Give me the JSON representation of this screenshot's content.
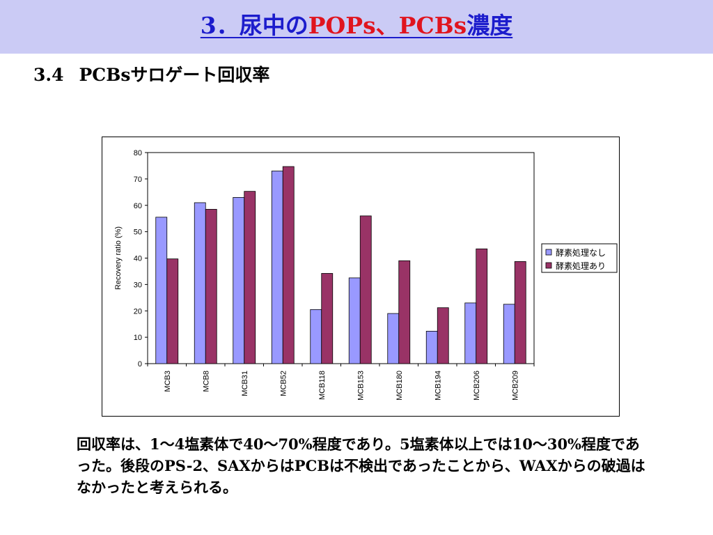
{
  "slide": {
    "title_prefix": "3．尿中の",
    "title_highlight": "POPs、PCBs",
    "title_suffix": "濃度",
    "section_number": "3.4",
    "section_title": "PCBsサロゲート回収率",
    "body": "回収率は、1～4塩素体で40～70%程度であり。5塩素体以上では10～30%程度であった。後段のPS-2、SAXからはPCBは不検出であったことから、WAXからの破過はなかったと考えられる。"
  },
  "colors": {
    "title_band": "#cbcbf5",
    "title_blue": "#1c1ccc",
    "title_red": "#e0141e",
    "series_1": "#9999ff",
    "series_2": "#993366"
  },
  "chart_data": {
    "type": "bar",
    "ylabel": "Recovery ratio (%)",
    "ylim": [
      0,
      80
    ],
    "yticks": [
      0,
      10,
      20,
      30,
      40,
      50,
      60,
      70,
      80
    ],
    "grid": false,
    "legend_position": "right",
    "categories": [
      "MCB3",
      "MCB8",
      "MCB31",
      "MCB52",
      "MCB118",
      "MCB153",
      "MCB180",
      "MCB194",
      "MCB206",
      "MCB209"
    ],
    "series": [
      {
        "name": "酵素処理なし",
        "color": "#9999ff",
        "values": [
          55.5,
          61,
          63,
          73,
          20.5,
          32.5,
          19,
          12.3,
          23,
          22.5
        ]
      },
      {
        "name": "酵素処理あり",
        "color": "#993366",
        "values": [
          39.7,
          58.5,
          65.3,
          74.7,
          34.2,
          56,
          39,
          21.2,
          43.5,
          38.7
        ]
      }
    ]
  }
}
